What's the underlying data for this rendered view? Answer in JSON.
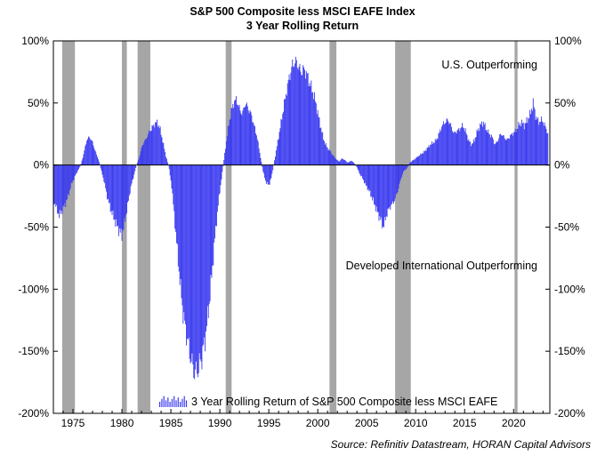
{
  "chart_data": {
    "type": "bar",
    "title": "S&P 500 Composite less MSCI EAFE Index",
    "subtitle": "3 Year Rolling Return",
    "source": "Source: Refinitiv Datastream, HORAN Capital Advisors",
    "legend": {
      "label": "3 Year Rolling Return of S&P 500 Composite less MSCI EAFE",
      "placement": "bottom-center"
    },
    "annotations": {
      "top": "U.S. Outperforming",
      "bottom": "Developed International Outperforming"
    },
    "x_tick_labels": [
      "1975",
      "1980",
      "1985",
      "1990",
      "1995",
      "2000",
      "2005",
      "2010",
      "2015",
      "2020"
    ],
    "x_ticks": [
      1975,
      1980,
      1985,
      1990,
      1995,
      2000,
      2005,
      2010,
      2015,
      2020
    ],
    "xlim": [
      1973.0,
      2023.7
    ],
    "y_tick_labels": [
      "100%",
      "50%",
      "0%",
      "-50%",
      "-100%",
      "-150%",
      "-200%"
    ],
    "y_ticks": [
      100,
      50,
      0,
      -50,
      -100,
      -150,
      -200
    ],
    "ylim": [
      -200,
      100
    ],
    "grid": false,
    "recessions": [
      [
        1973.9,
        1975.2
      ],
      [
        1980.0,
        1980.5
      ],
      [
        1981.6,
        1982.9
      ],
      [
        1990.6,
        1991.2
      ],
      [
        2001.2,
        2001.9
      ],
      [
        2007.9,
        2009.5
      ],
      [
        2020.1,
        2020.4
      ]
    ],
    "series": [
      {
        "color": "#3a3af0",
        "points": [
          [
            1973.0,
            -30
          ],
          [
            1973.3,
            -38
          ],
          [
            1973.6,
            -45
          ],
          [
            1973.9,
            -40
          ],
          [
            1974.2,
            -35
          ],
          [
            1974.5,
            -28
          ],
          [
            1974.8,
            -18
          ],
          [
            1975.2,
            -10
          ],
          [
            1975.5,
            -5
          ],
          [
            1975.8,
            0
          ],
          [
            1976.1,
            10
          ],
          [
            1976.4,
            22
          ],
          [
            1976.7,
            25
          ],
          [
            1977.0,
            20
          ],
          [
            1977.3,
            12
          ],
          [
            1977.6,
            5
          ],
          [
            1977.9,
            -5
          ],
          [
            1978.2,
            -15
          ],
          [
            1978.5,
            -28
          ],
          [
            1978.8,
            -38
          ],
          [
            1979.1,
            -45
          ],
          [
            1979.4,
            -52
          ],
          [
            1979.7,
            -58
          ],
          [
            1980.0,
            -62
          ],
          [
            1980.3,
            -50
          ],
          [
            1980.6,
            -35
          ],
          [
            1980.9,
            -20
          ],
          [
            1981.2,
            -10
          ],
          [
            1981.5,
            0
          ],
          [
            1981.8,
            8
          ],
          [
            1982.1,
            18
          ],
          [
            1982.4,
            22
          ],
          [
            1982.7,
            28
          ],
          [
            1983.0,
            32
          ],
          [
            1983.3,
            36
          ],
          [
            1983.6,
            38
          ],
          [
            1983.9,
            32
          ],
          [
            1984.2,
            20
          ],
          [
            1984.5,
            8
          ],
          [
            1984.8,
            -2
          ],
          [
            1985.1,
            -20
          ],
          [
            1985.4,
            -50
          ],
          [
            1985.7,
            -80
          ],
          [
            1986.0,
            -110
          ],
          [
            1986.3,
            -135
          ],
          [
            1986.6,
            -150
          ],
          [
            1986.9,
            -165
          ],
          [
            1987.2,
            -178
          ],
          [
            1987.5,
            -185
          ],
          [
            1987.8,
            -180
          ],
          [
            1988.1,
            -172
          ],
          [
            1988.4,
            -160
          ],
          [
            1988.7,
            -140
          ],
          [
            1989.0,
            -115
          ],
          [
            1989.3,
            -85
          ],
          [
            1989.6,
            -55
          ],
          [
            1989.9,
            -30
          ],
          [
            1990.2,
            -10
          ],
          [
            1990.5,
            10
          ],
          [
            1990.8,
            30
          ],
          [
            1991.1,
            45
          ],
          [
            1991.4,
            55
          ],
          [
            1991.7,
            58
          ],
          [
            1992.0,
            50
          ],
          [
            1992.3,
            45
          ],
          [
            1992.6,
            55
          ],
          [
            1992.9,
            50
          ],
          [
            1993.2,
            45
          ],
          [
            1993.5,
            35
          ],
          [
            1993.8,
            25
          ],
          [
            1994.1,
            10
          ],
          [
            1994.4,
            -5
          ],
          [
            1994.7,
            -15
          ],
          [
            1995.0,
            -18
          ],
          [
            1995.3,
            -10
          ],
          [
            1995.6,
            5
          ],
          [
            1995.9,
            20
          ],
          [
            1996.2,
            35
          ],
          [
            1996.5,
            50
          ],
          [
            1996.8,
            65
          ],
          [
            1997.1,
            78
          ],
          [
            1997.4,
            88
          ],
          [
            1997.7,
            92
          ],
          [
            1998.0,
            88
          ],
          [
            1998.3,
            82
          ],
          [
            1998.6,
            85
          ],
          [
            1998.9,
            80
          ],
          [
            1999.2,
            72
          ],
          [
            1999.5,
            65
          ],
          [
            1999.8,
            55
          ],
          [
            2000.1,
            42
          ],
          [
            2000.4,
            30
          ],
          [
            2000.7,
            20
          ],
          [
            2001.0,
            15
          ],
          [
            2001.3,
            12
          ],
          [
            2001.6,
            8
          ],
          [
            2001.9,
            5
          ],
          [
            2002.2,
            3
          ],
          [
            2002.5,
            6
          ],
          [
            2002.8,
            4
          ],
          [
            2003.1,
            2
          ],
          [
            2003.4,
            4
          ],
          [
            2003.7,
            2
          ],
          [
            2004.0,
            -2
          ],
          [
            2004.3,
            -8
          ],
          [
            2004.6,
            -12
          ],
          [
            2004.9,
            -18
          ],
          [
            2005.2,
            -22
          ],
          [
            2005.5,
            -28
          ],
          [
            2005.8,
            -35
          ],
          [
            2006.1,
            -42
          ],
          [
            2006.4,
            -48
          ],
          [
            2006.7,
            -55
          ],
          [
            2007.0,
            -45
          ],
          [
            2007.3,
            -38
          ],
          [
            2007.6,
            -35
          ],
          [
            2007.9,
            -30
          ],
          [
            2008.2,
            -22
          ],
          [
            2008.5,
            -12
          ],
          [
            2008.8,
            -5
          ],
          [
            2009.1,
            -3
          ],
          [
            2009.4,
            2
          ],
          [
            2009.7,
            4
          ],
          [
            2010.0,
            6
          ],
          [
            2010.3,
            8
          ],
          [
            2010.6,
            10
          ],
          [
            2010.9,
            12
          ],
          [
            2011.2,
            15
          ],
          [
            2011.5,
            18
          ],
          [
            2011.8,
            20
          ],
          [
            2012.1,
            22
          ],
          [
            2012.4,
            28
          ],
          [
            2012.7,
            35
          ],
          [
            2013.0,
            38
          ],
          [
            2013.3,
            40
          ],
          [
            2013.6,
            35
          ],
          [
            2013.9,
            28
          ],
          [
            2014.2,
            30
          ],
          [
            2014.5,
            32
          ],
          [
            2014.8,
            35
          ],
          [
            2015.1,
            30
          ],
          [
            2015.4,
            22
          ],
          [
            2015.7,
            18
          ],
          [
            2016.0,
            22
          ],
          [
            2016.3,
            30
          ],
          [
            2016.6,
            35
          ],
          [
            2016.9,
            38
          ],
          [
            2017.2,
            32
          ],
          [
            2017.5,
            28
          ],
          [
            2017.8,
            25
          ],
          [
            2018.1,
            18
          ],
          [
            2018.4,
            22
          ],
          [
            2018.7,
            28
          ],
          [
            2019.0,
            25
          ],
          [
            2019.3,
            22
          ],
          [
            2019.6,
            25
          ],
          [
            2019.9,
            28
          ],
          [
            2020.2,
            30
          ],
          [
            2020.5,
            35
          ],
          [
            2020.8,
            38
          ],
          [
            2021.1,
            35
          ],
          [
            2021.4,
            40
          ],
          [
            2021.7,
            45
          ],
          [
            2022.0,
            55
          ],
          [
            2022.3,
            42
          ],
          [
            2022.6,
            38
          ],
          [
            2022.9,
            40
          ],
          [
            2023.2,
            35
          ],
          [
            2023.5,
            28
          ]
        ]
      }
    ]
  }
}
